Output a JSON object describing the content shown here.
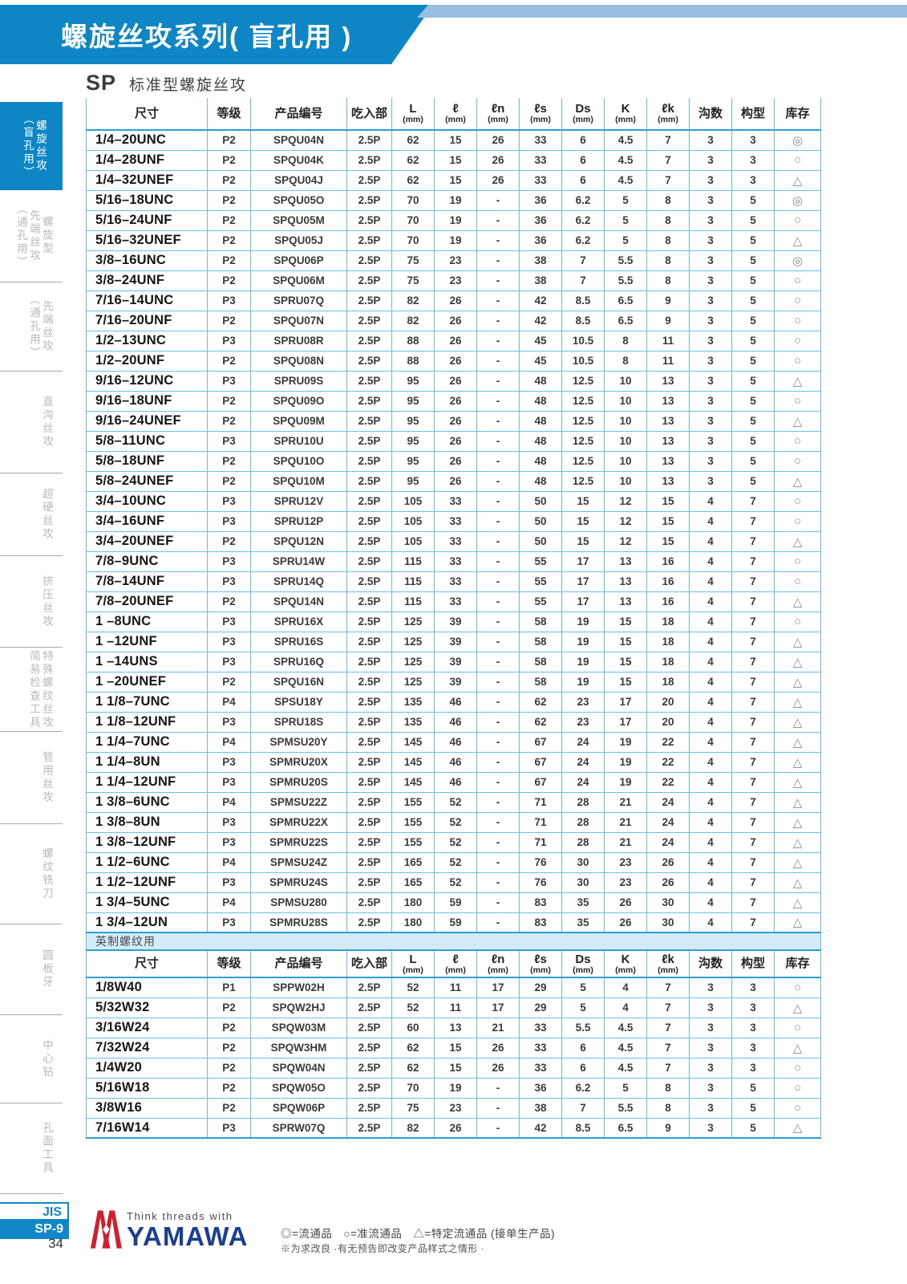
{
  "theme": {
    "banner": "#0e86c5",
    "strip": "#96c0dd",
    "line": "#67c0ec",
    "line-dark": "#2d9fd6",
    "band": "#d4ecf9",
    "brandblue": "#1b3e93",
    "brandred": "#cf2030",
    "accent": "#1287c8"
  },
  "page": {
    "banner_title": "螺旋丝攻系列( 盲孔用 )",
    "section_code": "SP",
    "section_title": "标准型螺旋丝攻"
  },
  "sidebar": {
    "items": [
      {
        "lines": [
          "螺旋丝攻",
          "（盲孔用）"
        ],
        "active": true
      },
      {
        "lines": [
          "螺旋型",
          "先端丝攻",
          "（通孔用）"
        ],
        "active": false
      },
      {
        "lines": [
          "先端丝攻",
          "（通孔用）"
        ],
        "active": false
      },
      {
        "lines": [
          "直沟丝攻"
        ],
        "active": false
      },
      {
        "lines": [
          "超硬丝攻"
        ],
        "active": false
      },
      {
        "lines": [
          "挤压丝攻"
        ],
        "active": false
      },
      {
        "lines": [
          "特殊螺纹丝攻",
          "简易检查工具"
        ],
        "active": false
      },
      {
        "lines": [
          "管用丝攻"
        ],
        "active": false
      },
      {
        "lines": [
          "螺纹铣刀"
        ],
        "active": false
      },
      {
        "lines": [
          "圆板牙"
        ],
        "active": false
      },
      {
        "lines": [
          "中心钻"
        ],
        "active": false
      },
      {
        "lines": [
          "孔面工具"
        ],
        "active": false
      }
    ]
  },
  "table": {
    "columns": [
      {
        "label": "尺寸"
      },
      {
        "label": "等级"
      },
      {
        "label": "产品编号"
      },
      {
        "label": "吃入部"
      },
      {
        "label": "L",
        "unit": "(mm)"
      },
      {
        "label": "ℓ",
        "unit": "(mm)"
      },
      {
        "label": "ℓn",
        "unit": "(mm)"
      },
      {
        "label": "ℓs",
        "unit": "(mm)"
      },
      {
        "label": "Ds",
        "unit": "(mm)"
      },
      {
        "label": "K",
        "unit": "(mm)"
      },
      {
        "label": "ℓk",
        "unit": "(mm)"
      },
      {
        "label": "沟数"
      },
      {
        "label": "构型"
      },
      {
        "label": "库存"
      }
    ],
    "unified_rows": [
      [
        "1/4–20UNC",
        "P2",
        "SPQU04N",
        "2.5P",
        "62",
        "15",
        "26",
        "33",
        "6",
        "4.5",
        "7",
        "3",
        "3",
        "◎"
      ],
      [
        "1/4–28UNF",
        "P2",
        "SPQU04K",
        "2.5P",
        "62",
        "15",
        "26",
        "33",
        "6",
        "4.5",
        "7",
        "3",
        "3",
        "○"
      ],
      [
        "1/4–32UNEF",
        "P2",
        "SPQU04J",
        "2.5P",
        "62",
        "15",
        "26",
        "33",
        "6",
        "4.5",
        "7",
        "3",
        "3",
        "△"
      ],
      [
        "5/16–18UNC",
        "P2",
        "SPQU05O",
        "2.5P",
        "70",
        "19",
        "-",
        "36",
        "6.2",
        "5",
        "8",
        "3",
        "5",
        "◎"
      ],
      [
        "5/16–24UNF",
        "P2",
        "SPQU05M",
        "2.5P",
        "70",
        "19",
        "-",
        "36",
        "6.2",
        "5",
        "8",
        "3",
        "5",
        "○"
      ],
      [
        "5/16–32UNEF",
        "P2",
        "SPQU05J",
        "2.5P",
        "70",
        "19",
        "-",
        "36",
        "6.2",
        "5",
        "8",
        "3",
        "5",
        "△"
      ],
      [
        "3/8–16UNC",
        "P2",
        "SPQU06P",
        "2.5P",
        "75",
        "23",
        "-",
        "38",
        "7",
        "5.5",
        "8",
        "3",
        "5",
        "◎"
      ],
      [
        "3/8–24UNF",
        "P2",
        "SPQU06M",
        "2.5P",
        "75",
        "23",
        "-",
        "38",
        "7",
        "5.5",
        "8",
        "3",
        "5",
        "○"
      ],
      [
        "7/16–14UNC",
        "P3",
        "SPRU07Q",
        "2.5P",
        "82",
        "26",
        "-",
        "42",
        "8.5",
        "6.5",
        "9",
        "3",
        "5",
        "○"
      ],
      [
        "7/16–20UNF",
        "P2",
        "SPQU07N",
        "2.5P",
        "82",
        "26",
        "-",
        "42",
        "8.5",
        "6.5",
        "9",
        "3",
        "5",
        "○"
      ],
      [
        "1/2–13UNC",
        "P3",
        "SPRU08R",
        "2.5P",
        "88",
        "26",
        "-",
        "45",
        "10.5",
        "8",
        "11",
        "3",
        "5",
        "○"
      ],
      [
        "1/2–20UNF",
        "P2",
        "SPQU08N",
        "2.5P",
        "88",
        "26",
        "-",
        "45",
        "10.5",
        "8",
        "11",
        "3",
        "5",
        "○"
      ],
      [
        "9/16–12UNC",
        "P3",
        "SPRU09S",
        "2.5P",
        "95",
        "26",
        "-",
        "48",
        "12.5",
        "10",
        "13",
        "3",
        "5",
        "△"
      ],
      [
        "9/16–18UNF",
        "P2",
        "SPQU09O",
        "2.5P",
        "95",
        "26",
        "-",
        "48",
        "12.5",
        "10",
        "13",
        "3",
        "5",
        "○"
      ],
      [
        "9/16–24UNEF",
        "P2",
        "SPQU09M",
        "2.5P",
        "95",
        "26",
        "-",
        "48",
        "12.5",
        "10",
        "13",
        "3",
        "5",
        "△"
      ],
      [
        "5/8–11UNC",
        "P3",
        "SPRU10U",
        "2.5P",
        "95",
        "26",
        "-",
        "48",
        "12.5",
        "10",
        "13",
        "3",
        "5",
        "○"
      ],
      [
        "5/8–18UNF",
        "P2",
        "SPQU10O",
        "2.5P",
        "95",
        "26",
        "-",
        "48",
        "12.5",
        "10",
        "13",
        "3",
        "5",
        "○"
      ],
      [
        "5/8–24UNEF",
        "P2",
        "SPQU10M",
        "2.5P",
        "95",
        "26",
        "-",
        "48",
        "12.5",
        "10",
        "13",
        "3",
        "5",
        "△"
      ],
      [
        "3/4–10UNC",
        "P3",
        "SPRU12V",
        "2.5P",
        "105",
        "33",
        "-",
        "50",
        "15",
        "12",
        "15",
        "4",
        "7",
        "○"
      ],
      [
        "3/4–16UNF",
        "P3",
        "SPRU12P",
        "2.5P",
        "105",
        "33",
        "-",
        "50",
        "15",
        "12",
        "15",
        "4",
        "7",
        "○"
      ],
      [
        "3/4–20UNEF",
        "P2",
        "SPQU12N",
        "2.5P",
        "105",
        "33",
        "-",
        "50",
        "15",
        "12",
        "15",
        "4",
        "7",
        "△"
      ],
      [
        "7/8–9UNC",
        "P3",
        "SPRU14W",
        "2.5P",
        "115",
        "33",
        "-",
        "55",
        "17",
        "13",
        "16",
        "4",
        "7",
        "○"
      ],
      [
        "7/8–14UNF",
        "P3",
        "SPRU14Q",
        "2.5P",
        "115",
        "33",
        "-",
        "55",
        "17",
        "13",
        "16",
        "4",
        "7",
        "○"
      ],
      [
        "7/8–20UNEF",
        "P2",
        "SPQU14N",
        "2.5P",
        "115",
        "33",
        "-",
        "55",
        "17",
        "13",
        "16",
        "4",
        "7",
        "△"
      ],
      [
        "1 –8UNC",
        "P3",
        "SPRU16X",
        "2.5P",
        "125",
        "39",
        "-",
        "58",
        "19",
        "15",
        "18",
        "4",
        "7",
        "○"
      ],
      [
        "1 –12UNF",
        "P3",
        "SPRU16S",
        "2.5P",
        "125",
        "39",
        "-",
        "58",
        "19",
        "15",
        "18",
        "4",
        "7",
        "△"
      ],
      [
        "1 –14UNS",
        "P3",
        "SPRU16Q",
        "2.5P",
        "125",
        "39",
        "-",
        "58",
        "19",
        "15",
        "18",
        "4",
        "7",
        "△"
      ],
      [
        "1 –20UNEF",
        "P2",
        "SPQU16N",
        "2.5P",
        "125",
        "39",
        "-",
        "58",
        "19",
        "15",
        "18",
        "4",
        "7",
        "△"
      ],
      [
        "1 1/8–7UNC",
        "P4",
        "SPSU18Y",
        "2.5P",
        "135",
        "46",
        "-",
        "62",
        "23",
        "17",
        "20",
        "4",
        "7",
        "△"
      ],
      [
        "1 1/8–12UNF",
        "P3",
        "SPRU18S",
        "2.5P",
        "135",
        "46",
        "-",
        "62",
        "23",
        "17",
        "20",
        "4",
        "7",
        "△"
      ],
      [
        "1 1/4–7UNC",
        "P4",
        "SPMSU20Y",
        "2.5P",
        "145",
        "46",
        "-",
        "67",
        "24",
        "19",
        "22",
        "4",
        "7",
        "△"
      ],
      [
        "1 1/4–8UN",
        "P3",
        "SPMRU20X",
        "2.5P",
        "145",
        "46",
        "-",
        "67",
        "24",
        "19",
        "22",
        "4",
        "7",
        "△"
      ],
      [
        "1 1/4–12UNF",
        "P3",
        "SPMRU20S",
        "2.5P",
        "145",
        "46",
        "-",
        "67",
        "24",
        "19",
        "22",
        "4",
        "7",
        "△"
      ],
      [
        "1 3/8–6UNC",
        "P4",
        "SPMSU22Z",
        "2.5P",
        "155",
        "52",
        "-",
        "71",
        "28",
        "21",
        "24",
        "4",
        "7",
        "△"
      ],
      [
        "1 3/8–8UN",
        "P3",
        "SPMRU22X",
        "2.5P",
        "155",
        "52",
        "-",
        "71",
        "28",
        "21",
        "24",
        "4",
        "7",
        "△"
      ],
      [
        "1 3/8–12UNF",
        "P3",
        "SPMRU22S",
        "2.5P",
        "155",
        "52",
        "-",
        "71",
        "28",
        "21",
        "24",
        "4",
        "7",
        "△"
      ],
      [
        "1 1/2–6UNC",
        "P4",
        "SPMSU24Z",
        "2.5P",
        "165",
        "52",
        "-",
        "76",
        "30",
        "23",
        "26",
        "4",
        "7",
        "△"
      ],
      [
        "1 1/2–12UNF",
        "P3",
        "SPMRU24S",
        "2.5P",
        "165",
        "52",
        "-",
        "76",
        "30",
        "23",
        "26",
        "4",
        "7",
        "△"
      ],
      [
        "1 3/4–5UNC",
        "P4",
        "SPMSU280",
        "2.5P",
        "180",
        "59",
        "-",
        "83",
        "35",
        "26",
        "30",
        "4",
        "7",
        "△"
      ],
      [
        "1 3/4–12UN",
        "P3",
        "SPMRU28S",
        "2.5P",
        "180",
        "59",
        "-",
        "83",
        "35",
        "26",
        "30",
        "4",
        "7",
        "△"
      ]
    ],
    "band_label": "英制螺纹用",
    "whitworth_rows": [
      [
        "1/8W40",
        "P1",
        "SPPW02H",
        "2.5P",
        "52",
        "11",
        "17",
        "29",
        "5",
        "4",
        "7",
        "3",
        "3",
        "○"
      ],
      [
        "5/32W32",
        "P2",
        "SPQW2HJ",
        "2.5P",
        "52",
        "11",
        "17",
        "29",
        "5",
        "4",
        "7",
        "3",
        "3",
        "△"
      ],
      [
        "3/16W24",
        "P2",
        "SPQW03M",
        "2.5P",
        "60",
        "13",
        "21",
        "33",
        "5.5",
        "4.5",
        "7",
        "3",
        "3",
        "○"
      ],
      [
        "7/32W24",
        "P2",
        "SPQW3HM",
        "2.5P",
        "62",
        "15",
        "26",
        "33",
        "6",
        "4.5",
        "7",
        "3",
        "3",
        "△"
      ],
      [
        "1/4W20",
        "P2",
        "SPQW04N",
        "2.5P",
        "62",
        "15",
        "26",
        "33",
        "6",
        "4.5",
        "7",
        "3",
        "3",
        "○"
      ],
      [
        "5/16W18",
        "P2",
        "SPQW05O",
        "2.5P",
        "70",
        "19",
        "-",
        "36",
        "6.2",
        "5",
        "8",
        "3",
        "5",
        "○"
      ],
      [
        "3/8W16",
        "P2",
        "SPQW06P",
        "2.5P",
        "75",
        "23",
        "-",
        "38",
        "7",
        "5.5",
        "8",
        "3",
        "5",
        "○"
      ],
      [
        "7/16W14",
        "P3",
        "SPRW07Q",
        "2.5P",
        "82",
        "26",
        "-",
        "42",
        "8.5",
        "6.5",
        "9",
        "3",
        "5",
        "△"
      ]
    ]
  },
  "footer": {
    "jis_label": "JIS",
    "page_ref": "SP-9",
    "page_number": "34",
    "brand_tagline": "Think threads with",
    "brand_name": "YAMAWA",
    "legend": "◎=流通品　○=准流通品　△=特定流通品 (接单生产品)",
    "note": "※为求改良 ·有无预告即改变产品样式之情形 ·"
  }
}
